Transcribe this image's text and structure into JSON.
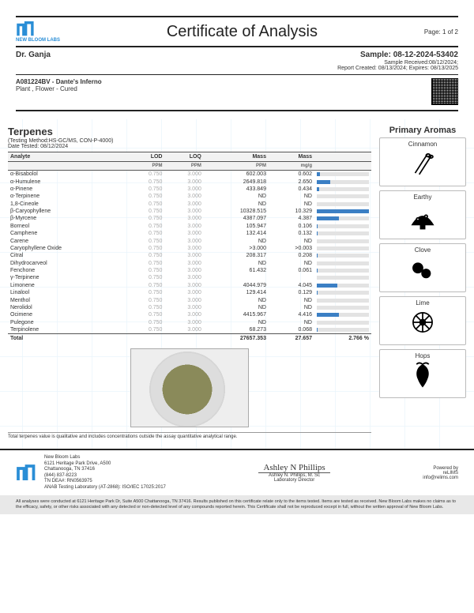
{
  "header": {
    "lab_name": "NEW BLOOM LABS",
    "title": "Certificate of Analysis",
    "page_label": "Page: 1 of 2",
    "client": "Dr. Ganja",
    "sample_id_label": "Sample: 08-12-2024-53402",
    "received": "Sample Received:08/12/2024;",
    "created": "Report Created: 08/13/2024; Expires: 08/13/2025",
    "product_id": "A081224BV - Dante's Inferno",
    "product_type": "Plant , Flower - Cured"
  },
  "section": {
    "title": "Terpenes",
    "method": "(Testing Method:HS-GC/MS, CON-P-4000)",
    "date_tested": "Date Tested: 08/12/2024",
    "columns": [
      "Analyte",
      "LOD",
      "LOQ",
      "Mass",
      "Mass",
      ""
    ],
    "subunits": [
      "",
      "PPM",
      "PPM",
      "PPM",
      "mg/g",
      ""
    ],
    "footnote": "Total terpenes value is qualitative and includes concentrations outside the assay quantitative analytical range.",
    "bar_color": "#3b7fc4",
    "bar_bg": "#e3e3e3"
  },
  "rows": [
    {
      "a": "α-Bisabolol",
      "lod": "0.750",
      "loq": "3.000",
      "ppm": "602.003",
      "mgg": "0.602",
      "pct": 6
    },
    {
      "a": "α-Humulene",
      "lod": "0.750",
      "loq": "3.000",
      "ppm": "2649.818",
      "mgg": "2.650",
      "pct": 26
    },
    {
      "a": "α-Pinene",
      "lod": "0.750",
      "loq": "3.000",
      "ppm": "433.849",
      "mgg": "0.434",
      "pct": 4
    },
    {
      "a": "α-Terpinene",
      "lod": "0.750",
      "loq": "3.000",
      "ppm": "ND",
      "mgg": "ND",
      "pct": 0
    },
    {
      "a": "1,8-Cineole",
      "lod": "0.750",
      "loq": "3.000",
      "ppm": "ND",
      "mgg": "ND",
      "pct": 0
    },
    {
      "a": "β-Caryophyllene",
      "lod": "0.750",
      "loq": "3.000",
      "ppm": "10328.515",
      "mgg": "10.329",
      "pct": 100
    },
    {
      "a": "β-Myrcene",
      "lod": "0.750",
      "loq": "3.000",
      "ppm": "4387.097",
      "mgg": "4.387",
      "pct": 43
    },
    {
      "a": "Borneol",
      "lod": "0.750",
      "loq": "3.000",
      "ppm": "105.947",
      "mgg": "0.106",
      "pct": 1
    },
    {
      "a": "Camphene",
      "lod": "0.750",
      "loq": "3.000",
      "ppm": "132.414",
      "mgg": "0.132",
      "pct": 1
    },
    {
      "a": "Carene",
      "lod": "0.750",
      "loq": "3.000",
      "ppm": "ND",
      "mgg": "ND",
      "pct": 0
    },
    {
      "a": "Caryophyllene Oxide",
      "lod": "0.750",
      "loq": "3.000",
      "ppm": ">3.000",
      "mgg": ">0.003",
      "pct": 0
    },
    {
      "a": "Citral",
      "lod": "0.750",
      "loq": "3.000",
      "ppm": "208.317",
      "mgg": "0.208",
      "pct": 2
    },
    {
      "a": "Dihydrocarveol",
      "lod": "0.750",
      "loq": "3.000",
      "ppm": "ND",
      "mgg": "ND",
      "pct": 0
    },
    {
      "a": "Fenchone",
      "lod": "0.750",
      "loq": "3.000",
      "ppm": "61.432",
      "mgg": "0.061",
      "pct": 1
    },
    {
      "a": "γ-Terpinene",
      "lod": "0.750",
      "loq": "3.000",
      "ppm": "<LOQ",
      "mgg": "<LOQ",
      "pct": 0
    },
    {
      "a": "Limonene",
      "lod": "0.750",
      "loq": "3.000",
      "ppm": "4044.979",
      "mgg": "4.045",
      "pct": 40
    },
    {
      "a": "Linalool",
      "lod": "0.750",
      "loq": "3.000",
      "ppm": "129.414",
      "mgg": "0.129",
      "pct": 1
    },
    {
      "a": "Menthol",
      "lod": "0.750",
      "loq": "3.000",
      "ppm": "ND",
      "mgg": "ND",
      "pct": 0
    },
    {
      "a": "Nerolidol",
      "lod": "0.750",
      "loq": "3.000",
      "ppm": "ND",
      "mgg": "ND",
      "pct": 0
    },
    {
      "a": "Ocimene",
      "lod": "0.750",
      "loq": "3.000",
      "ppm": "4415.967",
      "mgg": "4.416",
      "pct": 43
    },
    {
      "a": "Pulegone",
      "lod": "0.750",
      "loq": "3.000",
      "ppm": "ND",
      "mgg": "ND",
      "pct": 0
    },
    {
      "a": "Terpinolene",
      "lod": "0.750",
      "loq": "3.000",
      "ppm": "68.273",
      "mgg": "0.068",
      "pct": 1
    }
  ],
  "total": {
    "label": "Total",
    "ppm": "27657.353",
    "mgg": "27.657",
    "pct": "2.766 %"
  },
  "aromas": {
    "title": "Primary Aromas",
    "items": [
      "Cinnamon",
      "Earthy",
      "Clove",
      "Lime",
      "Hops"
    ]
  },
  "footer": {
    "lab_name": "New Bloom Labs",
    "addr1": "6121 Heritage Park Drive, A500",
    "addr2": "Chattanooga, TN 37416",
    "phone": "(844) 837-8223",
    "lic": "TN DEA#: RN0563975",
    "accred": "ANAB Testing Laboratory (AT-2868): ISO/IEC 17025:2017",
    "signer": "Ashley N. Phillips, M. Sc",
    "signer_title": "Laboratory Director",
    "powered": "Powered by",
    "powered_by": "reLIMS",
    "email": "info@relims.com"
  },
  "disclaimer": "All analyses were conducted at 6121 Heritage Park Dr, Suite A500 Chattanooga, TN 37416. Results published on this certificate relate only to the items tested. Items are tested as received. New Bloom Labs makes no claims as to the efficacy, safety, or other risks associated with any detected or non-detected level of any compounds reported herein. This Certificate shall not be reproduced except in full, without the written approval of New Bloom Labs."
}
